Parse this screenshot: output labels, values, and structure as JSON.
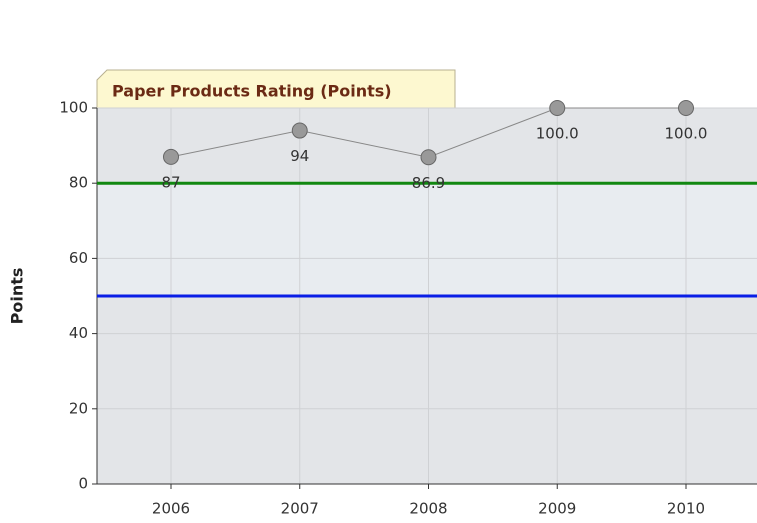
{
  "chart_data": {
    "type": "line",
    "title": "Paper Products Rating (Points)",
    "y_label": "Points",
    "categories": [
      "2006",
      "2007",
      "2008",
      "2009",
      "2010"
    ],
    "series": [
      {
        "color": "#888888",
        "values": [
          87,
          94,
          86.9,
          100,
          100
        ],
        "value_labels": [
          "87",
          "94",
          "86.9",
          "100.0",
          "100.0"
        ]
      }
    ],
    "reference_lines": [
      {
        "value": 80,
        "color": "#118811"
      },
      {
        "value": 50,
        "color": "#0a1ee6"
      }
    ],
    "ylim": [
      0,
      100
    ],
    "yticks": [
      0,
      20,
      40,
      60,
      80,
      100
    ],
    "grid": true
  }
}
